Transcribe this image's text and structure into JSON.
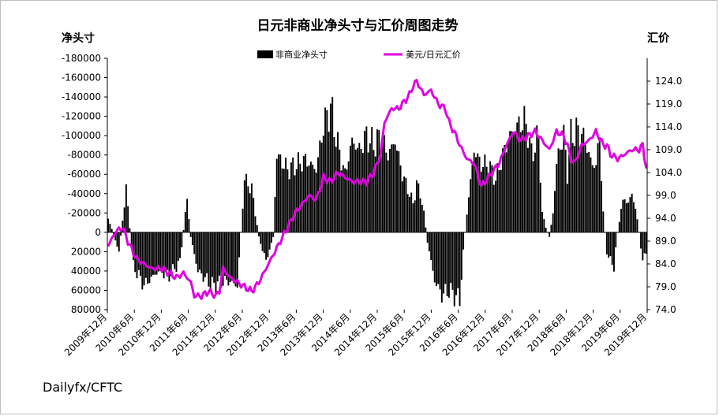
{
  "chart_data": {
    "type": "bar+line",
    "title": "日元非商业净头寸与汇价周图走势",
    "left_axis_label": "净头寸",
    "right_axis_label": "汇价",
    "source": "Dailyfx/CFTC",
    "legend": [
      {
        "name": "非商业净头寸",
        "color": "#000000",
        "kind": "bar"
      },
      {
        "name": "美元/日元汇价",
        "color": "#e000e0",
        "kind": "line"
      }
    ],
    "legend_placement": "top-center",
    "left_axis": {
      "min": -180000,
      "max": 80000,
      "step": 20000,
      "inverted": true,
      "tick_labels": [
        "-180000",
        "-160000",
        "-140000",
        "-120000",
        "-100000",
        "-80000",
        "-60000",
        "-40000",
        "-20000",
        "0",
        "20000",
        "40000",
        "60000",
        "80000"
      ]
    },
    "right_axis": {
      "min": 74.0,
      "max": 129.0,
      "step": 5,
      "tick_labels": [
        "74.0",
        "79.0",
        "84.0",
        "89.0",
        "94.0",
        "99.0",
        "104.0",
        "109.0",
        "114.0",
        "119.0",
        "124.0"
      ]
    },
    "x_tick_labels": [
      "2009年12月",
      "2010年6月",
      "2010年12月",
      "2011年6月",
      "2011年12月",
      "2012年6月",
      "2012年12月",
      "2013年6月",
      "2013年12月",
      "2014年6月",
      "2014年12月",
      "2015年6月",
      "2015年12月",
      "2016年6月",
      "2016年12月",
      "2017年6月",
      "2017年12月",
      "2018年6月",
      "2018年12月",
      "2019年6月",
      "2019年12月"
    ],
    "net_positions_anchors": [
      [
        0,
        -15000
      ],
      [
        6,
        20000
      ],
      [
        10,
        -45000
      ],
      [
        14,
        35000
      ],
      [
        20,
        55000
      ],
      [
        28,
        40000
      ],
      [
        34,
        45000
      ],
      [
        40,
        30000
      ],
      [
        44,
        -35000
      ],
      [
        46,
        5000
      ],
      [
        50,
        40000
      ],
      [
        58,
        55000
      ],
      [
        66,
        50000
      ],
      [
        72,
        55000
      ],
      [
        74,
        0
      ],
      [
        76,
        -55000
      ],
      [
        80,
        -45000
      ],
      [
        84,
        5000
      ],
      [
        88,
        30000
      ],
      [
        92,
        5000
      ],
      [
        94,
        -80000
      ],
      [
        100,
        -65000
      ],
      [
        110,
        -75000
      ],
      [
        116,
        -65000
      ],
      [
        120,
        -110000
      ],
      [
        124,
        -130000
      ],
      [
        128,
        -90000
      ],
      [
        132,
        -60000
      ],
      [
        136,
        -95000
      ],
      [
        140,
        -85000
      ],
      [
        144,
        -100000
      ],
      [
        148,
        -90000
      ],
      [
        152,
        -100000
      ],
      [
        156,
        -80000
      ],
      [
        160,
        -95000
      ],
      [
        164,
        -60000
      ],
      [
        168,
        -40000
      ],
      [
        170,
        -30000
      ],
      [
        172,
        -50000
      ],
      [
        174,
        -40000
      ],
      [
        176,
        -20000
      ],
      [
        178,
        10000
      ],
      [
        182,
        50000
      ],
      [
        186,
        65000
      ],
      [
        190,
        60000
      ],
      [
        196,
        70000
      ],
      [
        198,
        20000
      ],
      [
        200,
        -20000
      ],
      [
        204,
        -85000
      ],
      [
        208,
        -70000
      ],
      [
        212,
        -70000
      ],
      [
        216,
        -55000
      ],
      [
        220,
        -80000
      ],
      [
        224,
        -100000
      ],
      [
        228,
        -110000
      ],
      [
        232,
        -115000
      ],
      [
        234,
        -105000
      ],
      [
        236,
        -80000
      ],
      [
        238,
        -90000
      ],
      [
        240,
        -100000
      ],
      [
        242,
        -20000
      ],
      [
        244,
        -5000
      ],
      [
        246,
        5000
      ],
      [
        248,
        -20000
      ],
      [
        250,
        -70000
      ],
      [
        252,
        -90000
      ],
      [
        254,
        -100000
      ],
      [
        256,
        -60000
      ],
      [
        258,
        -100000
      ],
      [
        262,
        -105000
      ],
      [
        266,
        -95000
      ],
      [
        268,
        -80000
      ],
      [
        270,
        -70000
      ],
      [
        272,
        -70000
      ],
      [
        274,
        -100000
      ],
      [
        276,
        -20000
      ],
      [
        278,
        20000
      ],
      [
        280,
        30000
      ],
      [
        282,
        35000
      ],
      [
        284,
        0
      ],
      [
        286,
        -25000
      ],
      [
        288,
        -35000
      ],
      [
        290,
        -30000
      ],
      [
        292,
        -40000
      ],
      [
        294,
        -25000
      ],
      [
        296,
        0
      ],
      [
        298,
        30000
      ],
      [
        300,
        20000
      ]
    ],
    "usdjpy_anchors": [
      [
        0,
        88
      ],
      [
        4,
        91
      ],
      [
        8,
        92
      ],
      [
        12,
        88
      ],
      [
        16,
        85
      ],
      [
        20,
        84
      ],
      [
        24,
        83
      ],
      [
        30,
        83
      ],
      [
        34,
        82
      ],
      [
        38,
        81
      ],
      [
        42,
        82
      ],
      [
        46,
        80
      ],
      [
        48,
        77
      ],
      [
        52,
        77
      ],
      [
        56,
        78
      ],
      [
        60,
        77
      ],
      [
        62,
        78
      ],
      [
        64,
        83
      ],
      [
        68,
        81
      ],
      [
        72,
        80
      ],
      [
        76,
        79
      ],
      [
        80,
        78
      ],
      [
        84,
        80
      ],
      [
        88,
        83
      ],
      [
        92,
        86
      ],
      [
        96,
        89
      ],
      [
        100,
        92
      ],
      [
        104,
        95
      ],
      [
        108,
        97
      ],
      [
        112,
        99
      ],
      [
        116,
        98
      ],
      [
        120,
        103
      ],
      [
        124,
        102
      ],
      [
        128,
        104
      ],
      [
        132,
        103
      ],
      [
        136,
        102
      ],
      [
        140,
        102
      ],
      [
        144,
        102
      ],
      [
        148,
        104
      ],
      [
        152,
        108
      ],
      [
        154,
        115
      ],
      [
        158,
        118
      ],
      [
        162,
        118
      ],
      [
        166,
        120
      ],
      [
        168,
        121
      ],
      [
        170,
        123
      ],
      [
        172,
        124
      ],
      [
        176,
        121
      ],
      [
        180,
        122
      ],
      [
        184,
        119
      ],
      [
        188,
        118
      ],
      [
        190,
        115
      ],
      [
        194,
        112
      ],
      [
        196,
        110
      ],
      [
        200,
        107
      ],
      [
        204,
        106
      ],
      [
        208,
        101
      ],
      [
        212,
        103
      ],
      [
        216,
        105
      ],
      [
        218,
        106
      ],
      [
        222,
        110
      ],
      [
        226,
        113
      ],
      [
        230,
        111
      ],
      [
        234,
        112
      ],
      [
        238,
        113
      ],
      [
        242,
        111
      ],
      [
        246,
        109
      ],
      [
        250,
        113
      ],
      [
        254,
        112
      ],
      [
        256,
        110
      ],
      [
        258,
        107
      ],
      [
        260,
        106
      ],
      [
        264,
        110
      ],
      [
        268,
        111
      ],
      [
        272,
        113
      ],
      [
        276,
        110
      ],
      [
        278,
        110
      ],
      [
        280,
        108
      ],
      [
        284,
        107
      ],
      [
        288,
        108
      ],
      [
        292,
        109
      ],
      [
        296,
        109
      ],
      [
        298,
        110
      ],
      [
        300,
        105
      ]
    ]
  }
}
